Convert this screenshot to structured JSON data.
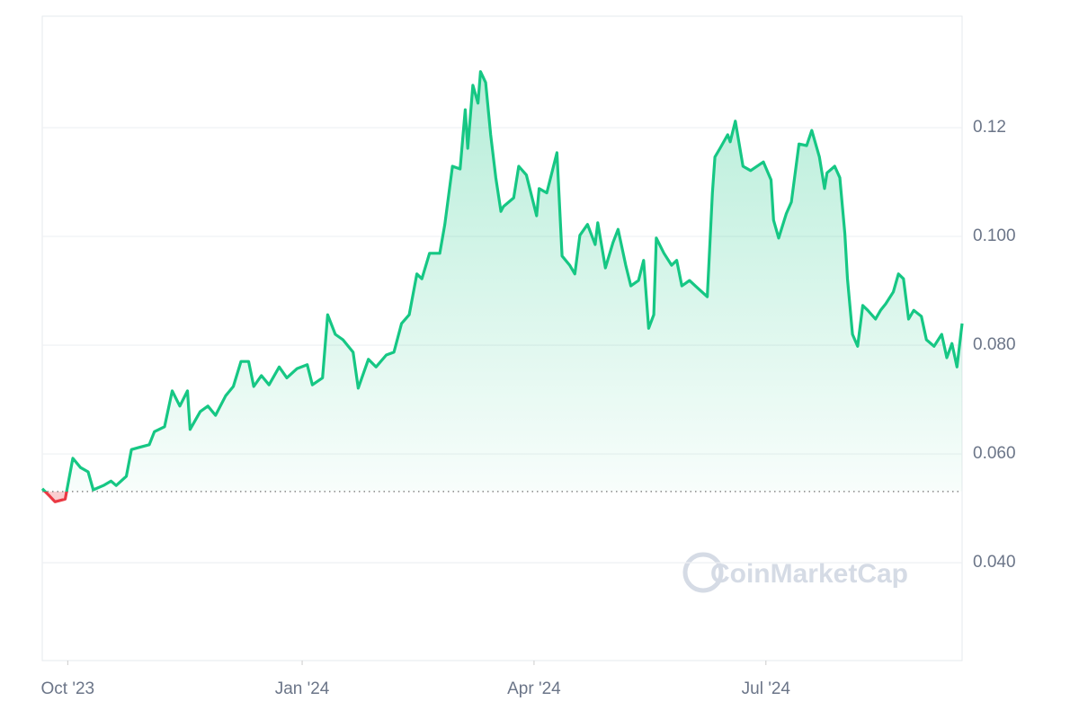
{
  "chart_data": {
    "type": "line",
    "watermark": "CoinMarketCap",
    "x": [
      0,
      3,
      5,
      9,
      12,
      15,
      18,
      20,
      24,
      27,
      29,
      33,
      35,
      38,
      42,
      44,
      48,
      51,
      54,
      57,
      58,
      62,
      65,
      68,
      72,
      75,
      78,
      81,
      83,
      86,
      89,
      93,
      96,
      100,
      104,
      106,
      110,
      112,
      115,
      118,
      122,
      124,
      128,
      131,
      135,
      138,
      141,
      144,
      147,
      149,
      152,
      156,
      158,
      161,
      164,
      166,
      167,
      169,
      171,
      172,
      174,
      176,
      178,
      180,
      181,
      185,
      187,
      190,
      194,
      195,
      198,
      202,
      204,
      207,
      209,
      211,
      214,
      217,
      218,
      221,
      224,
      226,
      229,
      231,
      234,
      236,
      238,
      240,
      241,
      244,
      247,
      249,
      251,
      254,
      257,
      261,
      263,
      264,
      266,
      269,
      270,
      272,
      275,
      278,
      283,
      286,
      287,
      289,
      292,
      294,
      297,
      300,
      302,
      305,
      307,
      308,
      311,
      313,
      315,
      316,
      318,
      320,
      322,
      324,
      327,
      329,
      331,
      334,
      336,
      338,
      340,
      342,
      345,
      347,
      350,
      353,
      355,
      357,
      359,
      361
    ],
    "series": [
      {
        "color": "#16c784",
        "down_color": "#ea3943",
        "values": [
          0.0536,
          0.0522,
          0.0512,
          0.0517,
          0.0592,
          0.0575,
          0.0567,
          0.0534,
          0.0542,
          0.055,
          0.0542,
          0.0559,
          0.0608,
          0.0612,
          0.0617,
          0.0641,
          0.065,
          0.0716,
          0.0688,
          0.0716,
          0.0645,
          0.0678,
          0.0688,
          0.0671,
          0.0707,
          0.0724,
          0.077,
          0.077,
          0.0724,
          0.0744,
          0.0727,
          0.076,
          0.074,
          0.0757,
          0.0764,
          0.0727,
          0.074,
          0.0856,
          0.082,
          0.081,
          0.0787,
          0.0721,
          0.0774,
          0.076,
          0.0782,
          0.0787,
          0.084,
          0.0856,
          0.0931,
          0.0922,
          0.0969,
          0.0969,
          0.1022,
          0.1129,
          0.1124,
          0.1233,
          0.1162,
          0.1278,
          0.1245,
          0.1303,
          0.1283,
          0.1187,
          0.1108,
          0.1046,
          0.1055,
          0.1071,
          0.1129,
          0.1113,
          0.1038,
          0.1088,
          0.108,
          0.1154,
          0.0964,
          0.0947,
          0.0931,
          0.1002,
          0.1022,
          0.0985,
          0.1025,
          0.0942,
          0.0989,
          0.1013,
          0.0947,
          0.0909,
          0.0919,
          0.0956,
          0.0831,
          0.0856,
          0.0997,
          0.0969,
          0.0947,
          0.0956,
          0.0909,
          0.0919,
          0.0906,
          0.0889,
          0.108,
          0.1146,
          0.1162,
          0.1187,
          0.1174,
          0.1212,
          0.1129,
          0.1121,
          0.1137,
          0.1104,
          0.103,
          0.0997,
          0.1042,
          0.1063,
          0.117,
          0.1167,
          0.1195,
          0.1146,
          0.1088,
          0.1117,
          0.1129,
          0.1108,
          0.1005,
          0.0922,
          0.082,
          0.0798,
          0.0873,
          0.0864,
          0.0848,
          0.0864,
          0.0876,
          0.0898,
          0.0931,
          0.0922,
          0.0848,
          0.0864,
          0.0853,
          0.081,
          0.0798,
          0.082,
          0.0777,
          0.0803,
          0.076,
          0.084
        ]
      }
    ],
    "baseline": 0.0531,
    "xlim": [
      0,
      361
    ],
    "xticks": [
      {
        "value": 10,
        "label": "Oct '23"
      },
      {
        "value": 102,
        "label": "Jan '24"
      },
      {
        "value": 193,
        "label": "Apr '24"
      },
      {
        "value": 284,
        "label": "Jul '24"
      }
    ],
    "ylim": [
      0.022,
      0.1405
    ],
    "yticks": [
      {
        "value": 0.04,
        "label": "0.040"
      },
      {
        "value": 0.06,
        "label": "0.060"
      },
      {
        "value": 0.08,
        "label": "0.080"
      },
      {
        "value": 0.1,
        "label": "0.100"
      },
      0.12
    ],
    "grid": true
  }
}
